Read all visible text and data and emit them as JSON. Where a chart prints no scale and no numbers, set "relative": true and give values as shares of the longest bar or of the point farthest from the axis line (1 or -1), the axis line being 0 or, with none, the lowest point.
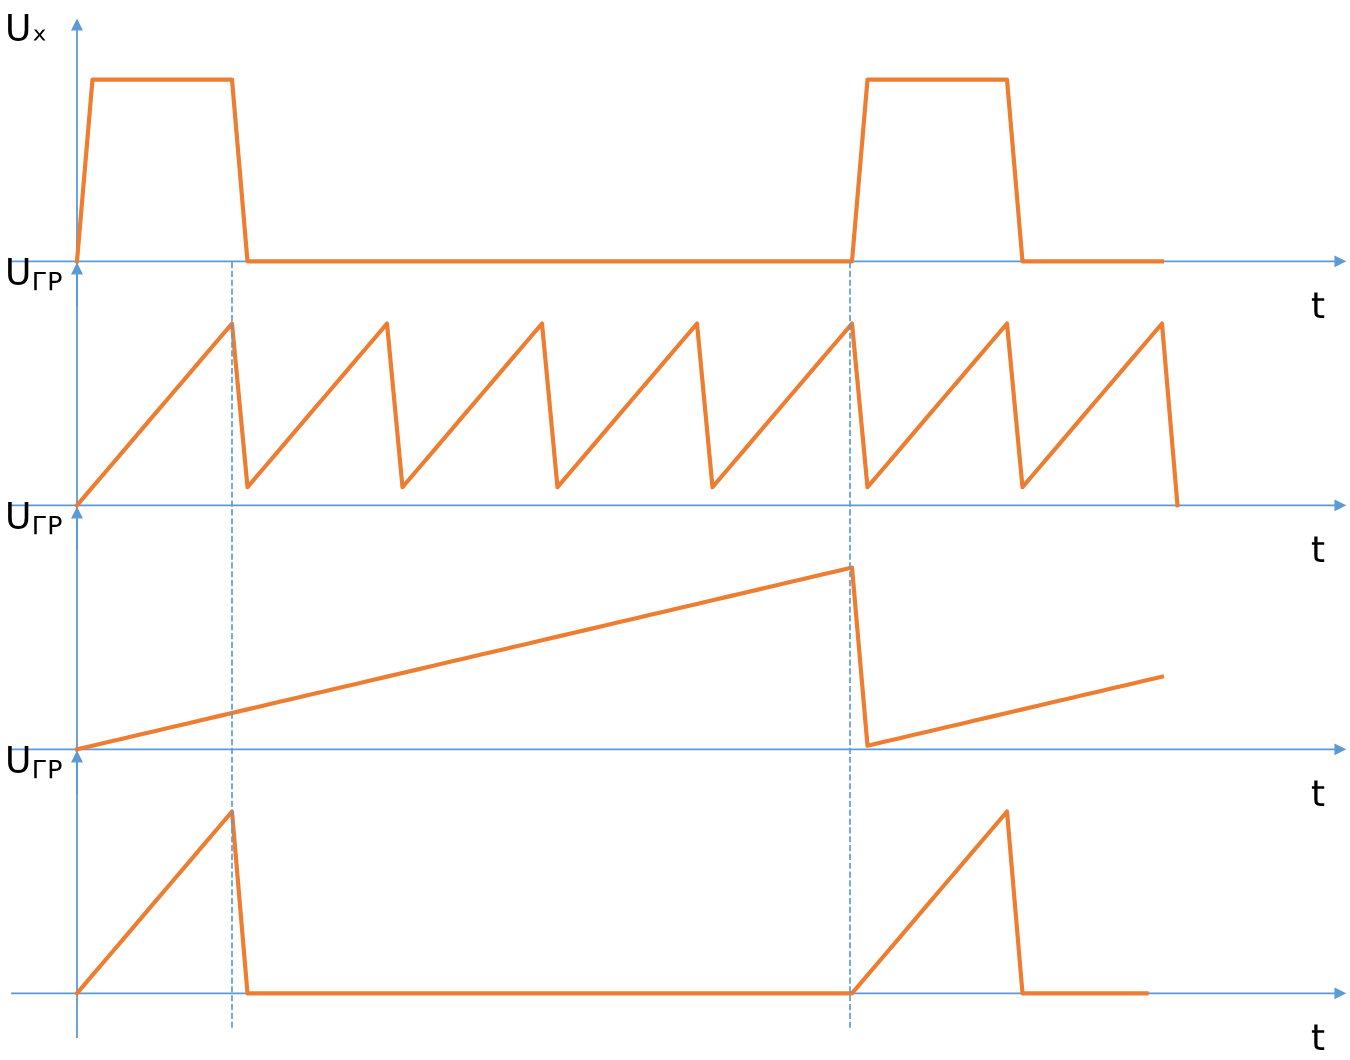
{
  "chart_data": [
    {
      "type": "line",
      "relative": true,
      "ylabel": "Uₓ",
      "xlabel": "t",
      "categories": [
        null,
        null,
        null,
        null,
        null,
        null,
        null,
        null,
        null,
        null,
        null,
        null,
        null,
        null,
        null,
        null,
        null,
        null,
        null,
        null,
        null,
        null,
        null,
        null,
        null,
        null,
        null,
        null,
        null,
        null,
        null,
        null,
        null,
        null,
        null,
        null,
        null,
        null,
        null,
        null,
        null,
        null,
        null,
        null,
        null,
        null,
        null,
        null,
        null,
        null,
        null,
        null,
        null,
        null,
        null,
        null,
        null,
        null,
        null,
        null,
        null,
        null,
        null,
        null,
        null,
        null,
        null,
        null,
        null,
        null,
        null
      ],
      "series": [
        {
          "color": "#ed7d31",
          "values": [
            0,
            1,
            1,
            1,
            1,
            1,
            1,
            1,
            1,
            1,
            1,
            0,
            0,
            0,
            0,
            0,
            0,
            0,
            0,
            0,
            0,
            0,
            0,
            0,
            0,
            0,
            0,
            0,
            0,
            0,
            0,
            0,
            0,
            0,
            0,
            0,
            0,
            0,
            0,
            0,
            0,
            0,
            0,
            0,
            0,
            0,
            0,
            0,
            0,
            0,
            0,
            1,
            1,
            1,
            1,
            1,
            1,
            1,
            1,
            1,
            1,
            0,
            0,
            0,
            0,
            0,
            0,
            0,
            0,
            0,
            0
          ]
        }
      ]
    },
    {
      "type": "line",
      "relative": true,
      "ylabel": "U$_{ГР}$",
      "xlabel": "t",
      "categories": [
        null,
        null,
        null,
        null,
        null,
        null,
        null,
        null,
        null,
        null,
        null,
        null,
        null,
        null,
        null,
        null,
        null,
        null,
        null,
        null,
        null,
        null,
        null,
        null,
        null,
        null,
        null,
        null,
        null,
        null,
        null,
        null,
        null,
        null,
        null,
        null,
        null,
        null,
        null,
        null,
        null,
        null,
        null,
        null,
        null,
        null,
        null,
        null,
        null,
        null,
        null,
        null,
        null,
        null,
        null,
        null,
        null,
        null,
        null,
        null,
        null,
        null,
        null,
        null,
        null,
        null,
        null,
        null,
        null,
        null,
        null,
        null
      ],
      "series": [
        {
          "color": "#ed7d31",
          "values": [
            0,
            0.1,
            0.2,
            0.3,
            0.4,
            0.5,
            0.6,
            0.7,
            0.8,
            0.9,
            1,
            0.1,
            0.2,
            0.3,
            0.4,
            0.5,
            0.6,
            0.7,
            0.8,
            0.9,
            1,
            0.1,
            0.2,
            0.3,
            0.4,
            0.5,
            0.6,
            0.7,
            0.8,
            0.9,
            1,
            0.1,
            0.2,
            0.3,
            0.4,
            0.5,
            0.6,
            0.7,
            0.8,
            0.9,
            1,
            0.1,
            0.2,
            0.3,
            0.4,
            0.5,
            0.6,
            0.7,
            0.8,
            0.9,
            1,
            0.1,
            0.2,
            0.3,
            0.4,
            0.5,
            0.6,
            0.7,
            0.8,
            0.9,
            1,
            0.1,
            0.2,
            0.3,
            0.4,
            0.5,
            0.6,
            0.7,
            0.8,
            0.9,
            1,
            0
          ]
        }
      ]
    },
    {
      "type": "line",
      "relative": true,
      "ylabel": "U$_{ГР}$",
      "xlabel": "t",
      "categories": [
        null,
        null,
        null,
        null,
        null,
        null,
        null,
        null,
        null,
        null,
        null,
        null,
        null,
        null,
        null,
        null,
        null,
        null,
        null,
        null,
        null,
        null,
        null,
        null,
        null,
        null,
        null,
        null,
        null,
        null,
        null,
        null,
        null,
        null,
        null,
        null,
        null,
        null,
        null,
        null,
        null,
        null,
        null,
        null,
        null,
        null,
        null,
        null,
        null,
        null,
        null,
        null,
        null,
        null,
        null,
        null,
        null,
        null,
        null,
        null,
        null,
        null,
        null,
        null,
        null,
        null,
        null,
        null,
        null,
        null,
        null
      ],
      "series": [
        {
          "color": "#ed7d31",
          "values": [
            0,
            0.02,
            0.04,
            0.06,
            0.08,
            0.1,
            0.12,
            0.14,
            0.16,
            0.18,
            0.2,
            0.22,
            0.24,
            0.26,
            0.28,
            0.3,
            0.32,
            0.34,
            0.36,
            0.38,
            0.4,
            0.42,
            0.44,
            0.46,
            0.48,
            0.5,
            0.52,
            0.54,
            0.56,
            0.58,
            0.6,
            0.62,
            0.64,
            0.66,
            0.68,
            0.7,
            0.72,
            0.74,
            0.76,
            0.78,
            0.8,
            0.82,
            0.84,
            0.86,
            0.88,
            0.9,
            0.92,
            0.94,
            0.96,
            0.98,
            1,
            0.02,
            0.04,
            0.06,
            0.08,
            0.1,
            0.12,
            0.14,
            0.16,
            0.18,
            0.2,
            0.22,
            0.24,
            0.26,
            0.28,
            0.3,
            0.32,
            0.34,
            0.36,
            0.38,
            0.4
          ]
        }
      ]
    },
    {
      "type": "line",
      "relative": true,
      "ylabel": "U$_{ГР}$",
      "xlabel": "t",
      "categories": [
        null,
        null,
        null,
        null,
        null,
        null,
        null,
        null,
        null,
        null,
        null,
        null,
        null,
        null,
        null,
        null,
        null,
        null,
        null,
        null,
        null,
        null,
        null,
        null,
        null,
        null,
        null,
        null,
        null,
        null,
        null,
        null,
        null,
        null,
        null,
        null,
        null,
        null,
        null,
        null,
        null,
        null,
        null,
        null,
        null,
        null,
        null,
        null,
        null,
        null,
        null,
        null,
        null,
        null,
        null,
        null,
        null,
        null,
        null,
        null,
        null,
        null,
        null,
        null,
        null,
        null,
        null,
        null,
        null,
        null
      ],
      "series": [
        {
          "color": "#ed7d31",
          "values": [
            0,
            0.1,
            0.2,
            0.3,
            0.4,
            0.5,
            0.6,
            0.7,
            0.8,
            0.9,
            1,
            0,
            0,
            0,
            0,
            0,
            0,
            0,
            0,
            0,
            0,
            0,
            0,
            0,
            0,
            0,
            0,
            0,
            0,
            0,
            0,
            0,
            0,
            0,
            0,
            0,
            0,
            0,
            0,
            0,
            0,
            0,
            0,
            0,
            0,
            0,
            0,
            0,
            0,
            0,
            0,
            0.1,
            0.2,
            0.3,
            0.4,
            0.5,
            0.6,
            0.7,
            0.8,
            0.9,
            1,
            0,
            0,
            0,
            0,
            0,
            0,
            0,
            0,
            0
          ]
        }
      ]
    }
  ]
}
